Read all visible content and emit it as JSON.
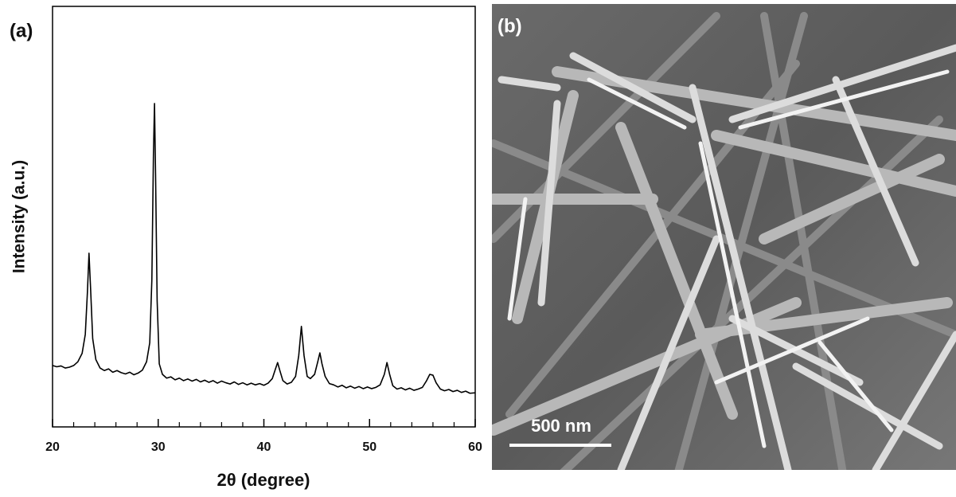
{
  "chart_data": {
    "type": "line",
    "panel_label": "(a)",
    "x_label": "2θ (degree)",
    "y_label": "Intensity (a.u.)",
    "color": "#000000",
    "xlim": [
      20,
      60
    ],
    "ylim": [
      0,
      100
    ],
    "xticks": [
      20,
      30,
      40,
      50,
      60
    ],
    "xminorticks": [
      22,
      24,
      26,
      28,
      32,
      34,
      36,
      38,
      42,
      44,
      46,
      48,
      52,
      54,
      56,
      58
    ],
    "x": [
      20.0,
      20.4,
      20.8,
      21.2,
      21.6,
      22.0,
      22.4,
      22.8,
      23.1,
      23.3,
      23.45,
      23.6,
      23.8,
      24.1,
      24.5,
      24.9,
      25.3,
      25.7,
      26.1,
      26.5,
      26.9,
      27.3,
      27.7,
      28.1,
      28.5,
      28.9,
      29.2,
      29.4,
      29.55,
      29.65,
      29.75,
      29.9,
      30.1,
      30.4,
      30.8,
      31.2,
      31.6,
      32.0,
      32.4,
      32.8,
      33.2,
      33.6,
      34.0,
      34.4,
      34.8,
      35.2,
      35.6,
      36.0,
      36.4,
      36.8,
      37.2,
      37.6,
      38.0,
      38.4,
      38.8,
      39.2,
      39.6,
      40.0,
      40.4,
      40.8,
      41.1,
      41.3,
      41.5,
      41.8,
      42.2,
      42.6,
      43.0,
      43.3,
      43.55,
      43.8,
      44.1,
      44.4,
      44.8,
      45.1,
      45.3,
      45.5,
      45.8,
      46.2,
      46.6,
      47.0,
      47.4,
      47.8,
      48.2,
      48.6,
      49.0,
      49.4,
      49.8,
      50.2,
      50.6,
      51.0,
      51.4,
      51.65,
      51.9,
      52.2,
      52.6,
      53.0,
      53.4,
      53.8,
      54.2,
      54.6,
      55.0,
      55.4,
      55.7,
      56.0,
      56.3,
      56.7,
      57.1,
      57.5,
      57.9,
      58.3,
      58.7,
      59.1,
      59.5,
      60.0
    ],
    "values": [
      14.6,
      14.3,
      14.5,
      14.0,
      14.2,
      14.6,
      15.5,
      17.5,
      22,
      32,
      41.3,
      33,
      21,
      16,
      14,
      13.4,
      13.8,
      13.0,
      13.4,
      12.9,
      12.6,
      13.0,
      12.4,
      12.8,
      13.5,
      15.5,
      20,
      35,
      65,
      76.9,
      60,
      30,
      15,
      12.5,
      11.6,
      11.9,
      11.2,
      11.6,
      11.0,
      11.4,
      10.9,
      11.3,
      10.7,
      11.1,
      10.6,
      11.0,
      10.4,
      10.9,
      10.5,
      10.2,
      10.7,
      10.1,
      10.5,
      10.0,
      10.4,
      10.0,
      10.3,
      9.9,
      10.4,
      11.5,
      13.8,
      15.3,
      13.5,
      11.0,
      10.2,
      10.6,
      12.0,
      17,
      23.9,
      17,
      12,
      11.5,
      12.5,
      15.5,
      17.6,
      15,
      12,
      10.3,
      10.0,
      9.5,
      9.9,
      9.3,
      9.7,
      9.2,
      9.6,
      9.1,
      9.5,
      9.1,
      9.4,
      10,
      12.5,
      15.3,
      12.5,
      9.8,
      9.0,
      9.3,
      8.8,
      9.2,
      8.7,
      9.0,
      9.4,
      11.0,
      12.5,
      12.3,
      10.5,
      9.0,
      8.6,
      8.9,
      8.4,
      8.7,
      8.2,
      8.5,
      8.0,
      8.1
    ]
  },
  "image": {
    "panel_label": "(b)",
    "scale_bar": "500 nm"
  }
}
